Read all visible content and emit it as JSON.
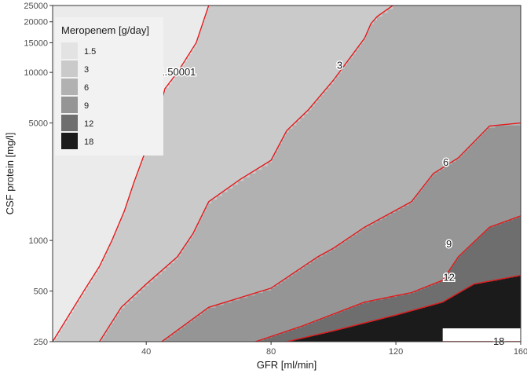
{
  "chart_data": {
    "type": "heatmap",
    "title": "",
    "xlabel": "GFR [ml/min]",
    "ylabel": "CSF protein [mg/l]",
    "xlim": [
      10,
      160
    ],
    "ylim": [
      250,
      25000
    ],
    "y_scale": "log",
    "x_ticks": [
      40,
      80,
      120,
      160
    ],
    "x_tick_labels": [
      "40",
      "80",
      "120",
      "160"
    ],
    "y_ticks": [
      250,
      500,
      1000,
      5000,
      10000,
      15000,
      20000,
      25000
    ],
    "y_tick_labels": [
      "250",
      "500",
      "1000",
      "5000",
      "10000",
      "15000",
      "20000",
      "25000"
    ],
    "grid": false,
    "legend": {
      "title": "Meropenem [g/day]",
      "placement": "top-left",
      "entries": [
        {
          "label": "1.5",
          "color": "#e3e3e3"
        },
        {
          "label": "3",
          "color": "#cacaca"
        },
        {
          "label": "6",
          "color": "#b1b1b1"
        },
        {
          "label": "9",
          "color": "#959595"
        },
        {
          "label": "12",
          "color": "#6e6e6e"
        },
        {
          "label": "18",
          "color": "#1b1b1b"
        }
      ]
    },
    "background_color": "#ffffff",
    "panel_background": "#ebebeb",
    "contour_color": "#e31a1c",
    "contours": [
      {
        "label": "1.50001",
        "label_x": 50,
        "label_y": 10000,
        "points": [
          [
            10,
            250
          ],
          [
            20,
            500
          ],
          [
            25,
            700
          ],
          [
            29,
            1000
          ],
          [
            33,
            1500
          ],
          [
            36,
            2200
          ],
          [
            40,
            3500
          ],
          [
            43,
            5000
          ],
          [
            46,
            8000
          ],
          [
            50,
            10000
          ],
          [
            56,
            15000
          ],
          [
            60,
            25000
          ]
        ]
      },
      {
        "label": "3",
        "label_x": 102,
        "label_y": 11000,
        "points": [
          [
            25,
            250
          ],
          [
            32,
            400
          ],
          [
            40,
            550
          ],
          [
            50,
            800
          ],
          [
            55,
            1100
          ],
          [
            60,
            1700
          ],
          [
            70,
            2300
          ],
          [
            80,
            3000
          ],
          [
            85,
            4500
          ],
          [
            92,
            6000
          ],
          [
            100,
            9000
          ],
          [
            105,
            12000
          ],
          [
            110,
            16000
          ],
          [
            112,
            19500
          ],
          [
            114,
            21500
          ],
          [
            119,
            25000
          ]
        ]
      },
      {
        "label": "6",
        "label_x": 136,
        "label_y": 2900,
        "points": [
          [
            45,
            250
          ],
          [
            60,
            400
          ],
          [
            80,
            520
          ],
          [
            95,
            800
          ],
          [
            100,
            900
          ],
          [
            110,
            1200
          ],
          [
            125,
            1700
          ],
          [
            132,
            2500
          ],
          [
            140,
            3100
          ],
          [
            150,
            4800
          ],
          [
            160,
            5000
          ]
        ]
      },
      {
        "label": "9",
        "label_x": 137,
        "label_y": 950,
        "points": [
          [
            75,
            250
          ],
          [
            90,
            310
          ],
          [
            110,
            430
          ],
          [
            125,
            490
          ],
          [
            135,
            580
          ],
          [
            140,
            800
          ],
          [
            150,
            1200
          ],
          [
            160,
            1400
          ]
        ]
      },
      {
        "label": "12",
        "label_x": 137,
        "label_y": 600,
        "points": [
          [
            85,
            250
          ],
          [
            100,
            290
          ],
          [
            120,
            360
          ],
          [
            135,
            430
          ],
          [
            145,
            550
          ],
          [
            160,
            620
          ]
        ]
      },
      {
        "label": "18",
        "label_x": 153,
        "label_y": 250,
        "points": [
          [
            135,
            250
          ],
          [
            160,
            250
          ]
        ]
      }
    ],
    "regions": [
      {
        "level": "1.5",
        "color": "#e3e3e3"
      },
      {
        "level": "3",
        "color": "#cacaca"
      },
      {
        "level": "6",
        "color": "#b1b1b1"
      },
      {
        "level": "9",
        "color": "#959595"
      },
      {
        "level": "12",
        "color": "#6e6e6e"
      },
      {
        "level": "18",
        "color": "#1b1b1b"
      }
    ]
  }
}
